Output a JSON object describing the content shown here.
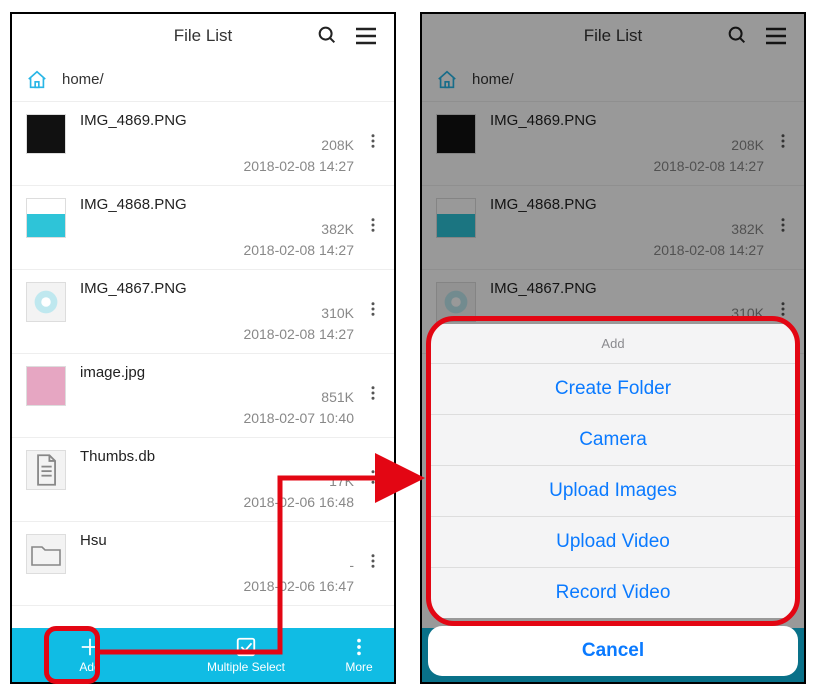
{
  "colors": {
    "accent": "#10bce4",
    "ios_blue": "#0a7aff",
    "callout": "#e30613"
  },
  "header": {
    "title": "File List"
  },
  "breadcrumb": {
    "path": "home/"
  },
  "files": [
    {
      "name": "IMG_4869.PNG",
      "size": "208K",
      "date": "2018-02-08 14:27",
      "thumb": "dark"
    },
    {
      "name": "IMG_4868.PNG",
      "size": "382K",
      "date": "2018-02-08 14:27",
      "thumb": "teal"
    },
    {
      "name": "IMG_4867.PNG",
      "size": "310K",
      "date": "2018-02-08 14:27",
      "thumb": "circ"
    },
    {
      "name": "image.jpg",
      "size": "851K",
      "date": "2018-02-07 10:40",
      "thumb": "pink"
    },
    {
      "name": "Thumbs.db",
      "size": "17K",
      "date": "2018-02-06 16:48",
      "thumb": "file"
    },
    {
      "name": "Hsu",
      "size": "-",
      "date": "2018-02-06 16:47",
      "thumb": "folder"
    }
  ],
  "tabbar": {
    "add": "Add",
    "multi": "Multiple Select",
    "more": "More"
  },
  "sheet": {
    "title": "Add",
    "options": [
      "Create Folder",
      "Camera",
      "Upload Images",
      "Upload Video",
      "Record Video"
    ],
    "cancel": "Cancel"
  }
}
